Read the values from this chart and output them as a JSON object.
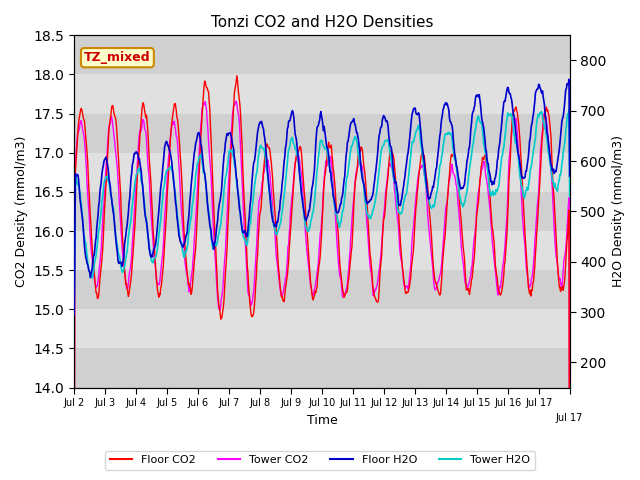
{
  "title": "Tonzi CO2 and H2O Densities",
  "xlabel": "Time",
  "ylabel_left": "CO2 Density (mmol/m3)",
  "ylabel_right": "H2O Density (mmol/m3)",
  "annotation_text": "TZ_mixed",
  "annotation_facecolor": "#FFFFCC",
  "annotation_edgecolor": "#CC8800",
  "annotation_textcolor": "#CC0000",
  "ylim_left": [
    14.0,
    18.5
  ],
  "ylim_right": [
    150,
    850
  ],
  "plot_bg_color": "#E8E8E8",
  "line_colors": {
    "floor_co2": "#FF0000",
    "tower_co2": "#FF00FF",
    "floor_h2o": "#0000CC",
    "tower_h2o": "#00CCCC"
  },
  "legend_labels": [
    "Floor CO2",
    "Tower CO2",
    "Floor H2O",
    "Tower H2O"
  ],
  "x_tick_positions": [
    0,
    1,
    2,
    3,
    4,
    5,
    6,
    7,
    8,
    9,
    10,
    11,
    12,
    13,
    14,
    15,
    16
  ],
  "x_tick_labels": [
    "Jul 2",
    "Jul 3",
    "Jul 4",
    "Jul 5",
    "Jul 6",
    "Jul 7",
    "Jul 8",
    "Jul 9",
    "Jul 10",
    "Jul 11",
    "Jul 12",
    "Jul 13",
    "Jul 14",
    "Jul 15",
    "Jul 16",
    "Jul 17",
    ""
  ],
  "n_days": 16,
  "points_per_day": 48,
  "seed": 42,
  "band_colors": [
    "#D0D0D0",
    "#E0E0E0"
  ],
  "y_bands": [
    14.0,
    14.5,
    15.0,
    15.5,
    16.0,
    16.5,
    17.0,
    17.5,
    18.0,
    18.5
  ]
}
